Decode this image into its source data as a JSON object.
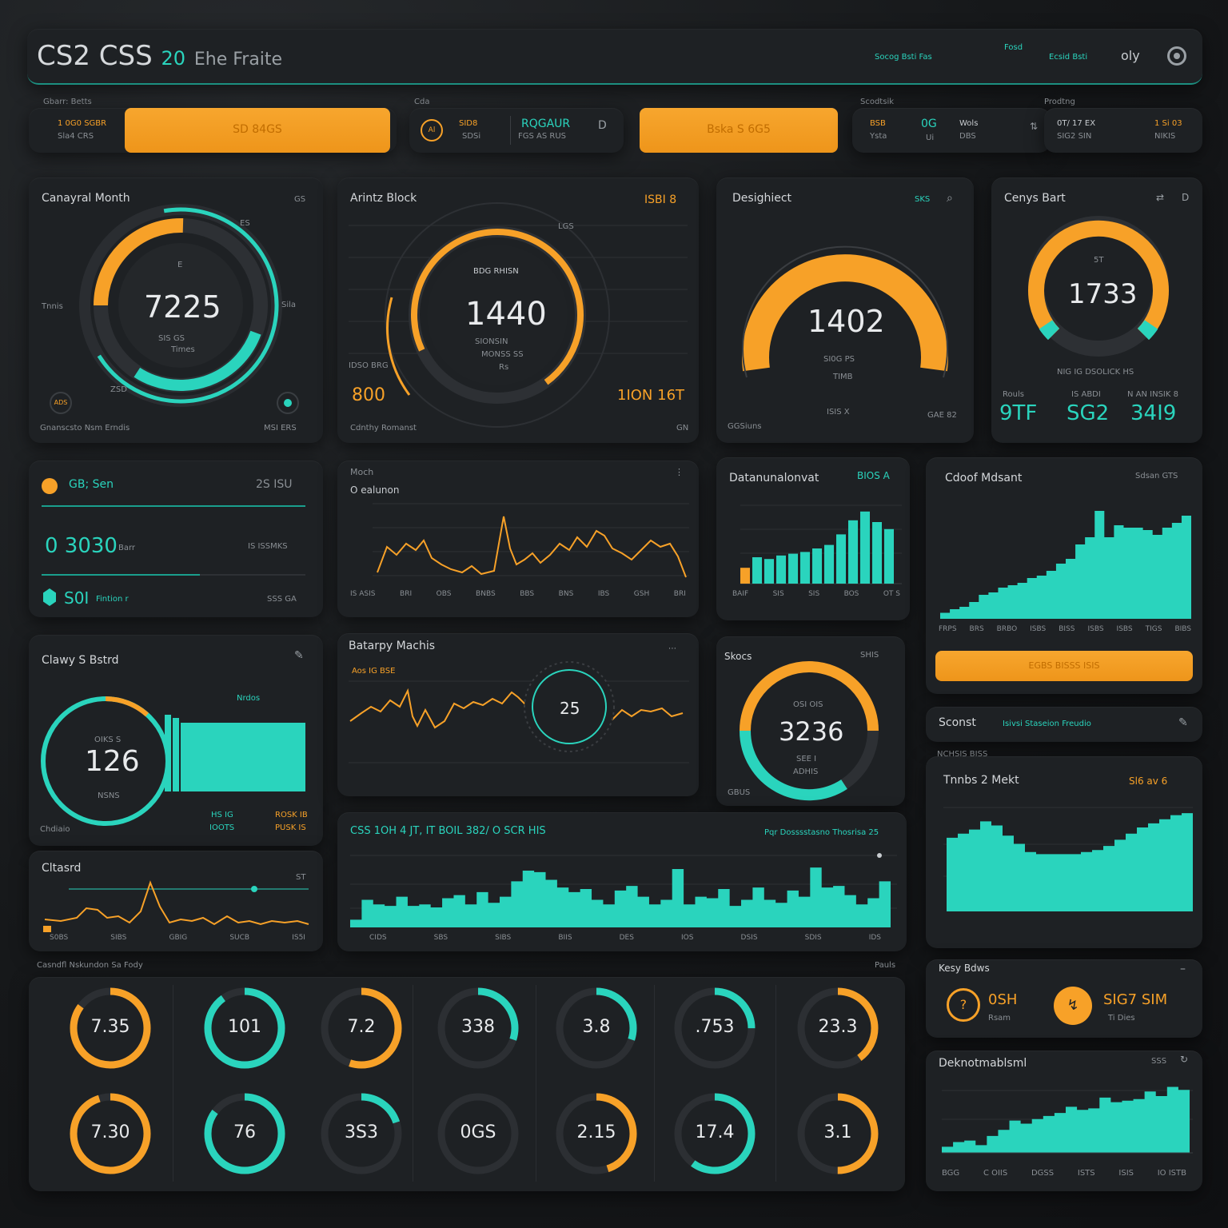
{
  "colors": {
    "accent_orange": "#f7a128",
    "accent_teal": "#2ad4bd",
    "panel": "#1e2124",
    "bg": "#16181a"
  },
  "header": {
    "logo_a": "CS2",
    "logo_b": "CSS",
    "logo_c": "20",
    "logo_d": "Ehe Fraite",
    "nav": [
      "Socog Bsti Fas",
      "Fosd",
      "Ecsid Bsti",
      "Fosd"
    ],
    "user": "oly",
    "settings_icon": "settings-icon"
  },
  "topbar": {
    "g1": {
      "label": "Gbarr: Betts",
      "value": "1 0G0 SGBR",
      "sub": "Sla4 CRS",
      "btn": "SD 84GS"
    },
    "g2": {
      "label": "Cda",
      "circle": "Al",
      "v1": "SID8",
      "v1sub": "SDSi",
      "v2": "RQGAUR",
      "v2sub": "FGS AS RUS",
      "icon": "D"
    },
    "g3": {
      "btn": "Bska S 6G5"
    },
    "g4": {
      "label": "Scodtsik",
      "v1": "BSB",
      "v1sub": "Ysta",
      "v2": "0G",
      "v2sub": "Ui",
      "v3": "Wols",
      "v3sub": "DBS"
    },
    "g5": {
      "label": "Prodtng",
      "v1": "0T/ 17 EX",
      "v1sub": "SIG2 SIN",
      "v2": "1 Si 03",
      "v2sub": "NIKIS"
    }
  },
  "row1": {
    "p1": {
      "title": "Canayral Month",
      "value": "7225",
      "corner": "GS",
      "tl": "Tnnis",
      "tr": "Sila",
      "top": "ES",
      "mid": "E",
      "sub1": "SIS GS",
      "sub2": "Times",
      "bottom": "ZSD",
      "b1": "Gnanscsto Nsm Erndis",
      "b2": "MSI ERS",
      "badge": "ADS"
    },
    "p2": {
      "title": "Arintz Block",
      "tr": "ISBI 8",
      "value": "1440",
      "inner": "BDG RHISN",
      "sub1": "SIONSIN",
      "sub2": "MONSS SS",
      "sub3": "Rs",
      "left": "IDSO BRG",
      "lv": "800",
      "rv": "1ION 16T",
      "b1": "Cdnthy Romanst",
      "b2": "GN",
      "top": "LGS"
    },
    "p3": {
      "title": "Desighiect",
      "tr": "SKS",
      "value": "1402",
      "sub1": "SI0G PS",
      "sub2": "TIMB",
      "sub3": "ISIS X",
      "b1": "GGSiuns",
      "b2": "GAE 82"
    },
    "p4": {
      "title": "Cenys Bart",
      "value": "1733",
      "top": "5T",
      "sub": "NIG IG DSOLICK HS",
      "l1": "Rouls",
      "l2": "IS ABDI",
      "l3": "N AN INSIK 8",
      "v1": "9TF",
      "v2": "SG2",
      "v3": "34I9"
    }
  },
  "row2": {
    "a": {
      "title": "GB; Sen",
      "tr": "2S ISU",
      "value": "0 3030",
      "unit": "Barr",
      "right": "IS ISSMKS",
      "v2": "S0I",
      "u2": "Fintion r",
      "br": "SSS GA"
    },
    "b": {
      "title": "Moch",
      "sub": "O ealunon",
      "xt": [
        "IS ASIS",
        "BRI",
        "OBS",
        "BNBS",
        "BBS",
        "BNS",
        "IBS",
        "GSH",
        "BRI"
      ]
    },
    "c": {
      "title": "Datanunalonvat",
      "tr": "BIOS A",
      "xt": [
        "BAIF",
        "SIS",
        "SIS",
        "BOS",
        "OT S"
      ]
    },
    "d": {
      "title": "Cdoof Mdsant",
      "tr": "Sdsan GTS",
      "btn": "EGBS     BISSS ISIS",
      "xt": [
        "FRPS",
        "BRS",
        "BRBO",
        "ISBS",
        "BISS",
        "ISBS",
        "ISBS",
        "TIGS",
        "BIBS"
      ]
    }
  },
  "row3": {
    "a": {
      "title": "Clawy S Bstrd",
      "tr": "Nrdos",
      "value": "126",
      "inner": "OIKS S",
      "sub": "NSNS",
      "l1": "HS IG",
      "l2": "IOOTS",
      "r1": "ROSK IB",
      "r2": "PUSK IS",
      "bl": "Chdiaio"
    },
    "b": {
      "title": "Batarpy Machis",
      "sub": "Aos IG BSE",
      "value": "25"
    },
    "c": {
      "title": "Skocs",
      "tr": "SHIS",
      "value": "3236",
      "inner": "OSI OIS",
      "s1": "SEE I",
      "s2": "ADHIS",
      "bl": "GBUS"
    },
    "d": {
      "title": "Sconst",
      "sub": "Isivsi Staseion Freudio"
    }
  },
  "row4": {
    "a": {
      "title": "Cltasrd",
      "tr": "ST",
      "xt": [
        "S0BS",
        "SIBS",
        "GBIG",
        "SUCB",
        "IS5I"
      ]
    },
    "b": {
      "title": "CSS  1OH 4 JT,  IT BOIL 382/ O SCR  HIS",
      "tr": "Pqr Dosssstasno Thosrisa 25",
      "xt": [
        "CIDS",
        "SBS",
        "SIBS",
        "BIIS",
        "DES",
        "IOS",
        "DSIS",
        "SDIS",
        "IDS"
      ]
    },
    "c": {
      "label": "NCHSIS BISS",
      "title": "Tnnbs 2 Mekt",
      "tr": "Sl6 av 6"
    }
  },
  "bottom": {
    "label": "Casndfl Nskundon Sa Fody",
    "tr": "Pauls",
    "row1": [
      "7.35",
      "101",
      "7.2",
      "338",
      "3.8",
      ".753",
      "23.3"
    ],
    "row2": [
      "7.30",
      "76",
      "3S3",
      "0GS",
      "2.15",
      "17.4",
      "3.1"
    ],
    "pct1": [
      0.85,
      0.9,
      0.55,
      0.3,
      0.3,
      0.25,
      0.4
    ],
    "pct2": [
      0.95,
      0.85,
      0.2,
      0.0,
      0.45,
      0.6,
      0.5
    ]
  },
  "right_bottom": {
    "k": {
      "title": "Kesy Bdws",
      "v1": "0SH",
      "v1sub": "Rsam",
      "v2": "SIG7 SIM",
      "v2sub": "Ti Dies"
    },
    "d": {
      "title": "Deknotmablsml",
      "tr": "SSS",
      "xt": [
        "BGG",
        "C OIIS",
        "DGSS",
        "ISTS",
        "ISIS",
        "IO ISTB"
      ]
    }
  }
}
